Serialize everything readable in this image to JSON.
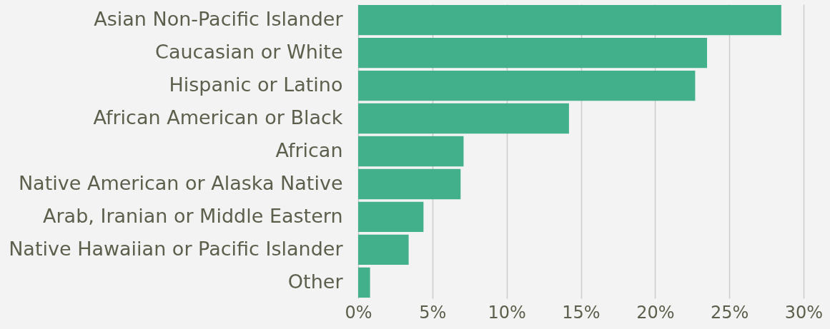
{
  "chart_data": {
    "type": "bar",
    "orientation": "horizontal",
    "categories": [
      "Asian Non-Pacific Islander",
      "Caucasian or White",
      "Hispanic or Latino",
      "African American or Black",
      "African",
      "Native American or Alaska Native",
      "Arab, Iranian or Middle Eastern",
      "Native Hawaiian or Pacific Islander",
      "Other"
    ],
    "values": [
      28.5,
      23.5,
      22.7,
      14.2,
      7.1,
      6.9,
      4.4,
      3.4,
      0.8
    ],
    "color": "#43b08c",
    "xlim": [
      0,
      30
    ],
    "xticks": [
      {
        "value": 0,
        "label": "0%"
      },
      {
        "value": 5,
        "label": "5%"
      },
      {
        "value": 10,
        "label": "10%"
      },
      {
        "value": 15,
        "label": "15%"
      },
      {
        "value": 20,
        "label": "20%"
      },
      {
        "value": 25,
        "label": "25%"
      },
      {
        "value": 30,
        "label": "30%"
      }
    ],
    "grid": "x"
  }
}
